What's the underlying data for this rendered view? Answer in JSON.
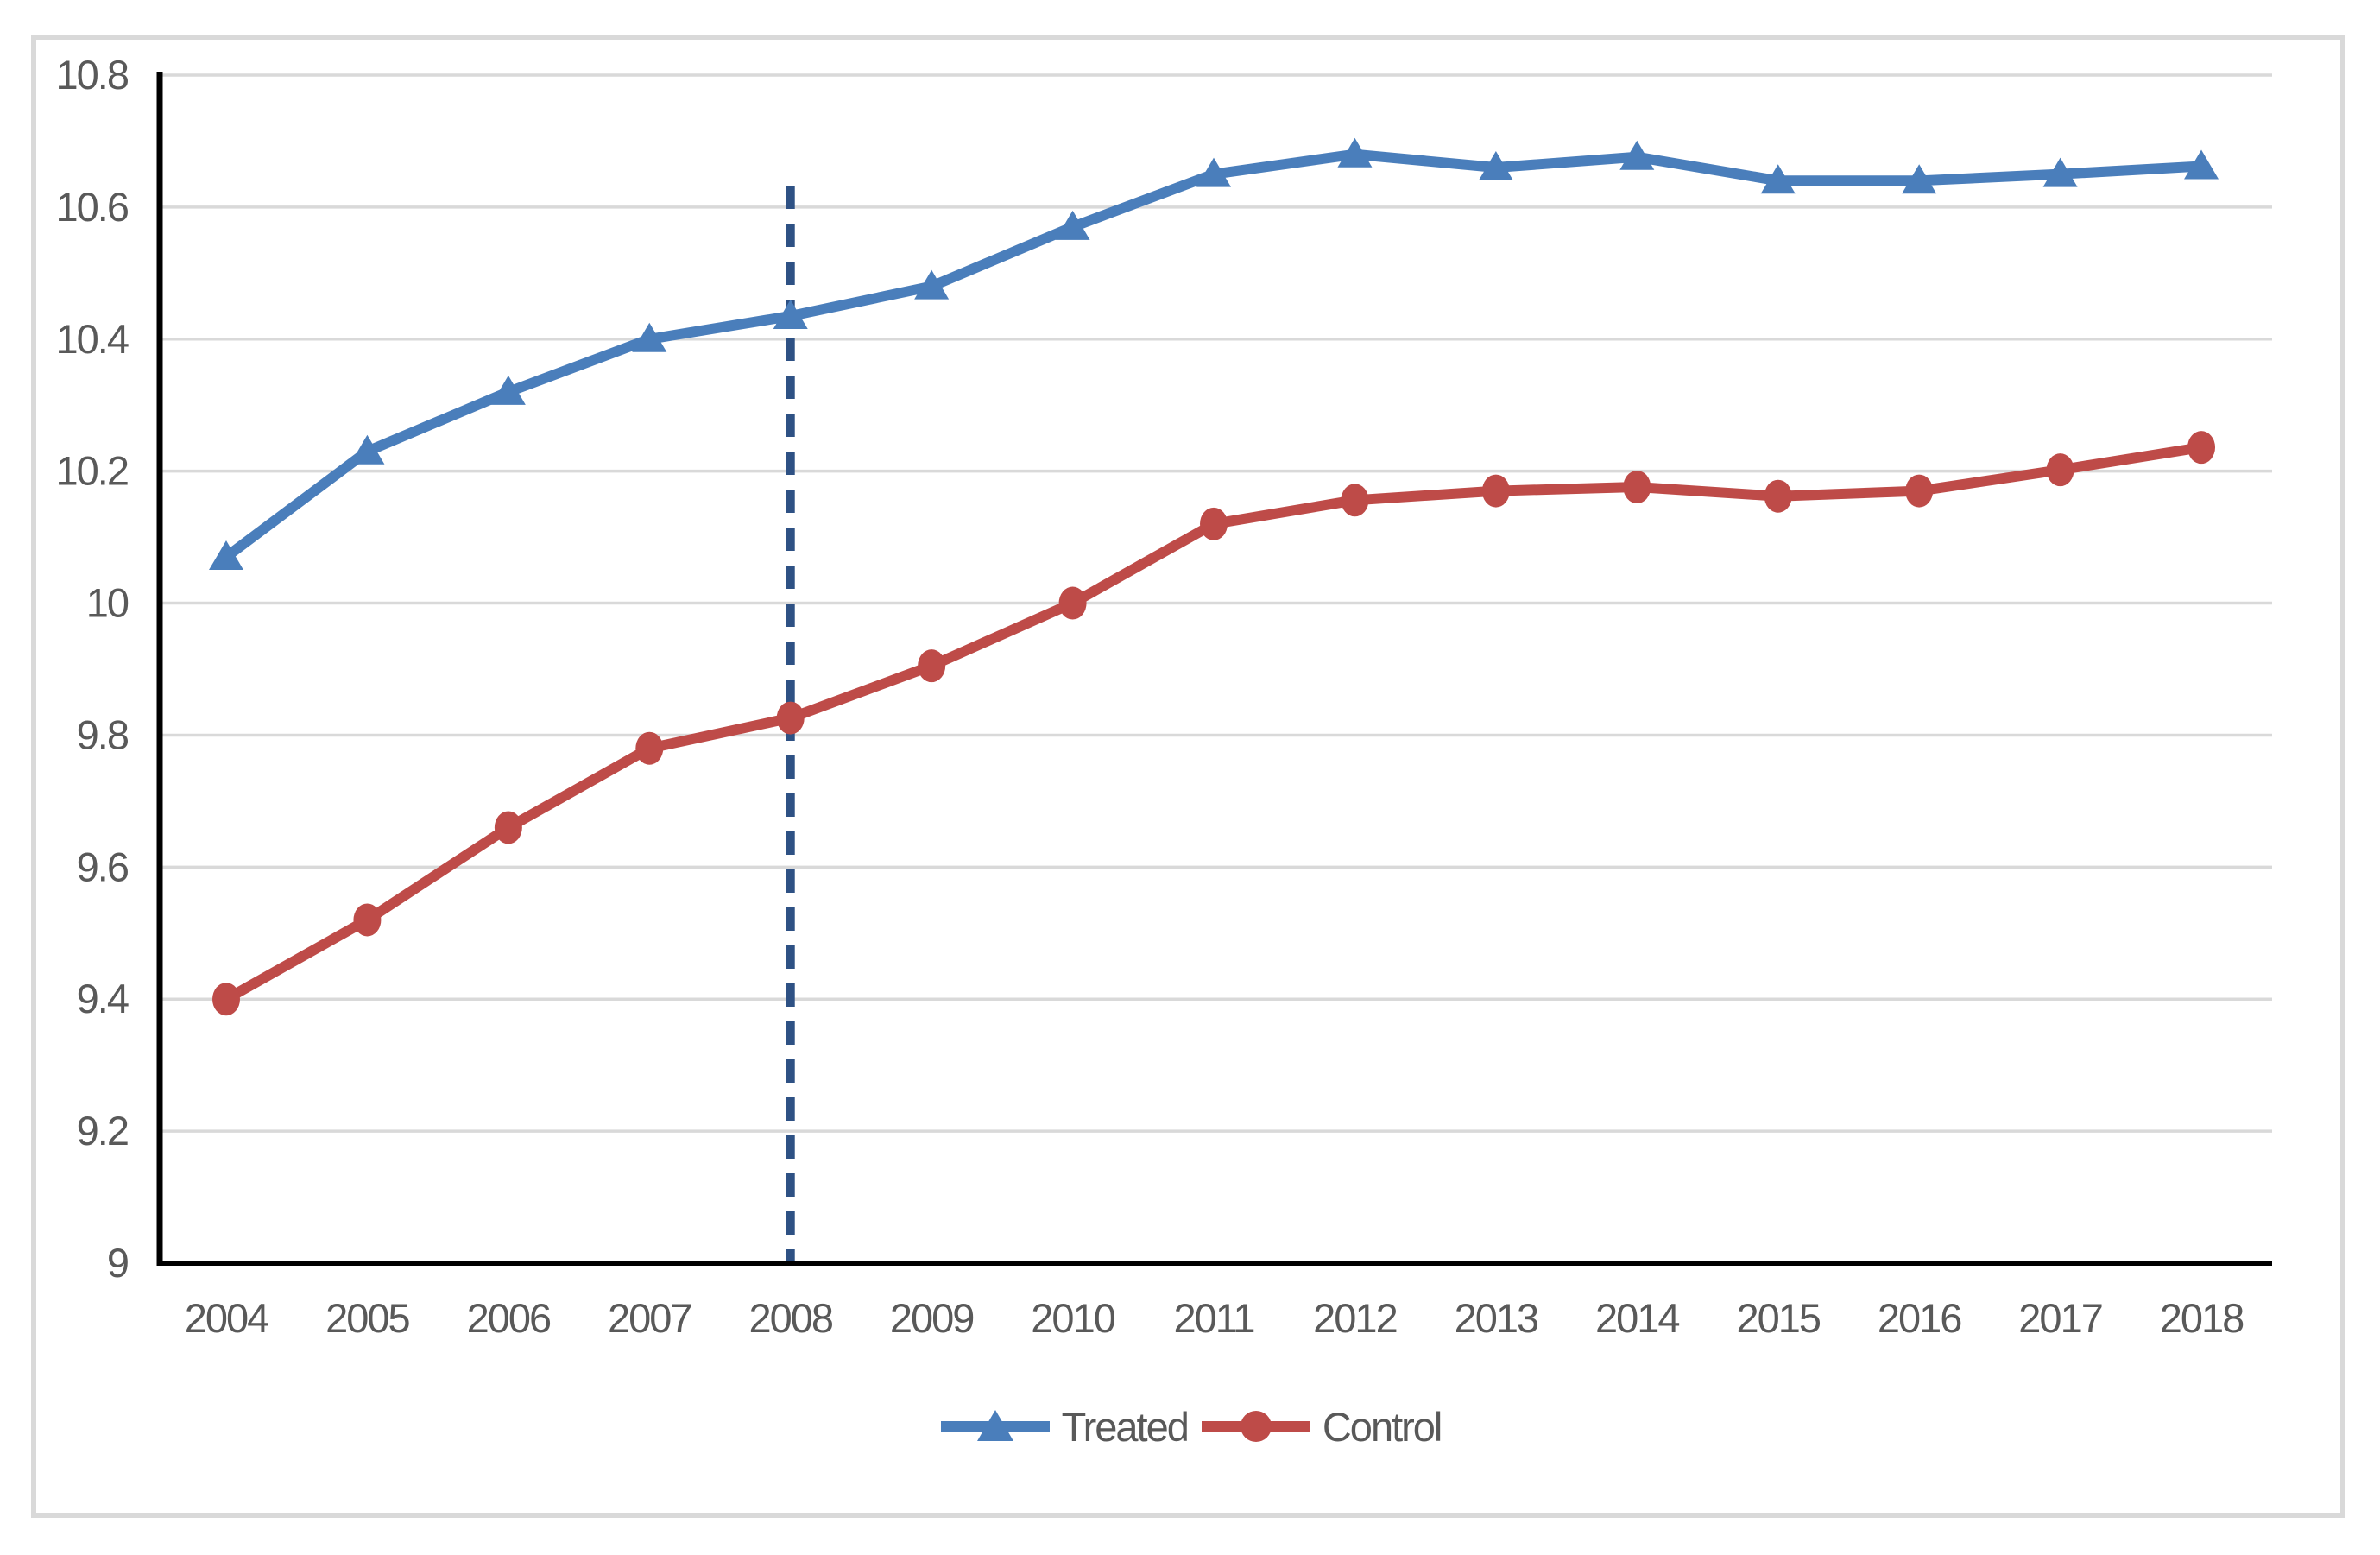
{
  "chart_data": {
    "type": "line",
    "x": [
      2004,
      2005,
      2006,
      2007,
      2008,
      2009,
      2010,
      2011,
      2012,
      2013,
      2014,
      2015,
      2016,
      2017,
      2018
    ],
    "series": [
      {
        "name": "Treated",
        "marker": "triangle",
        "color": "#4A7EBB",
        "values": [
          10.07,
          10.23,
          10.32,
          10.4,
          10.435,
          10.48,
          10.57,
          10.65,
          10.68,
          10.66,
          10.676,
          10.64,
          10.64,
          10.65,
          10.662
        ]
      },
      {
        "name": "Control",
        "marker": "circle",
        "color": "#BE4B48",
        "values": [
          9.4,
          9.52,
          9.66,
          9.78,
          9.826,
          9.905,
          10.0,
          10.12,
          10.156,
          10.17,
          10.176,
          10.162,
          10.17,
          10.202,
          10.236
        ]
      }
    ],
    "title": "",
    "xlabel": "",
    "ylabel": "",
    "ylim": [
      9,
      10.8
    ],
    "yticks": [
      10.8,
      10.6,
      10.4,
      10.2,
      10,
      9.8,
      9.6,
      9.4,
      9.2,
      9
    ],
    "ytick_labels": [
      "10.8",
      "10.6",
      "10.4",
      "10.2",
      "10",
      "9.8",
      "9.6",
      "9.4",
      "9.2",
      "9"
    ],
    "xtick_labels": [
      "2004",
      "2005",
      "2006",
      "2007",
      "2008",
      "2009",
      "2010",
      "2011",
      "2012",
      "2013",
      "2014",
      "2015",
      "2016",
      "2017",
      "2018"
    ],
    "grid": true,
    "legend_position": "bottom-center",
    "reference_line": {
      "type": "vertical-dashed",
      "x": 2008,
      "color": "#2E5184"
    }
  },
  "legend": {
    "items": [
      {
        "label": "Treated",
        "color": "#4A7EBB",
        "marker": "triangle"
      },
      {
        "label": "Control",
        "color": "#BE4B48",
        "marker": "circle"
      }
    ]
  },
  "style": {
    "grid_color": "#D9D9D9",
    "axis_color": "#000000",
    "tick_text_color": "#595959",
    "figure_border_color": "#D9D9D9",
    "background": "#FFFFFF"
  }
}
